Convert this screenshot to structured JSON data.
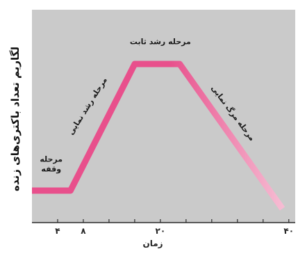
{
  "chart_data": {
    "type": "line",
    "ylabel": "لگاریم تعداد باکتری‌های زنده",
    "xlabel": "زمان",
    "x_tick_labels": [
      "۴",
      "۸",
      "۲۰",
      "۴۰"
    ],
    "x_tick_values": [
      4,
      8,
      20,
      40
    ],
    "xlim": [
      0,
      41
    ],
    "grid": false,
    "series": [
      {
        "x": [
          0,
          6,
          16,
          23,
          39
        ],
        "y": [
          1,
          1,
          8,
          8,
          0
        ],
        "color": "#e8508c",
        "fade_color": "#f6bcd3"
      }
    ],
    "annotations": [
      {
        "text": "مرحله\nوقفه",
        "x": 3,
        "y": 2.6,
        "rotate": 0
      },
      {
        "text": "مرحله رشد نمایی",
        "x": 9,
        "y": 5.6,
        "rotate": -58
      },
      {
        "text": "مرحله رشد ثابت",
        "x": 20,
        "y": 9.1,
        "rotate": 0
      },
      {
        "text": "مرحله مرگ نمایی",
        "x": 31,
        "y": 5.2,
        "rotate": 53
      }
    ],
    "colors": {
      "plot_bg": "#cacaca",
      "axis": "#2a2a2a"
    }
  }
}
